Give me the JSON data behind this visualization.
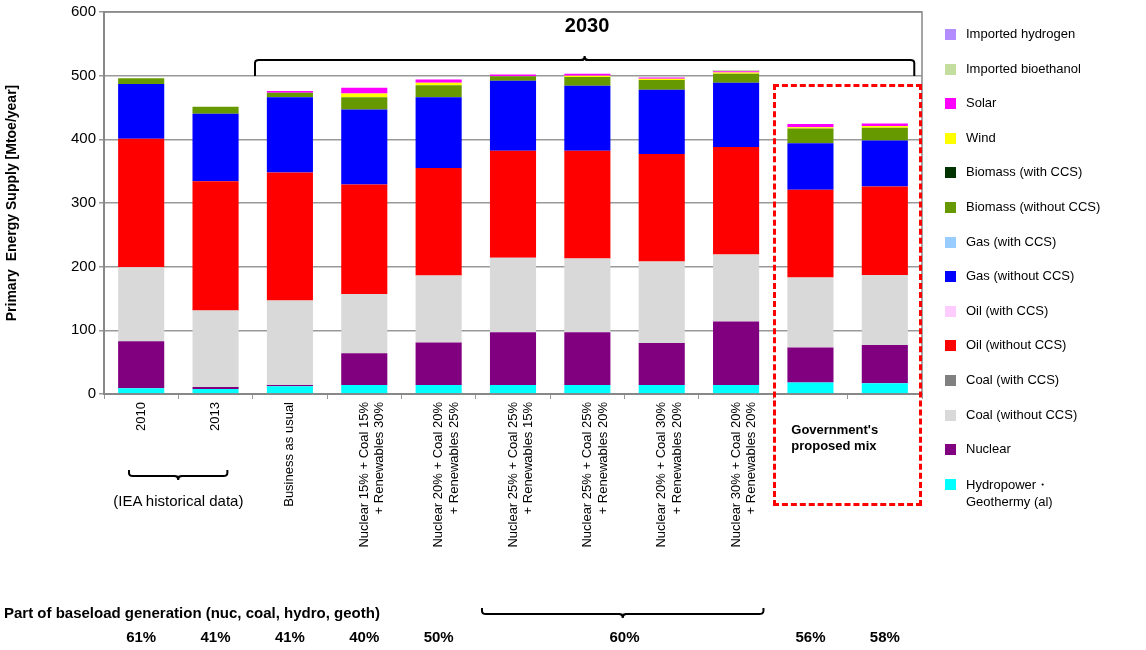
{
  "chart_data": {
    "type": "bar",
    "stacked": true,
    "ylabel": "Primary  Energy Supply [Mtoe/year]",
    "categories": [
      "2010",
      "2013",
      "Business as usual",
      "Nuclear 15% + Coal 15%\n+ Renewables 30%",
      "Nuclear 20% + Coal 20%\n+ Renewables 25%",
      "Nuclear 25% + Coal 25%\n+ Renewables 15%",
      "Nuclear 25% + Coal 25%\n+ Renewables 20%",
      "Nuclear 20% + Coal 30%\n+ Renewables 20%",
      "Nuclear 30% + Coal 20%\n+ Renewables 20%",
      null,
      null
    ],
    "series": [
      {
        "name": "Hydropower・\nGeothermy (al)",
        "color": "#00ffff",
        "values": [
          9,
          8,
          12,
          14,
          14,
          14,
          14,
          14,
          14,
          18,
          17
        ]
      },
      {
        "name": "Nuclear",
        "color": "#800080",
        "values": [
          74,
          3,
          2,
          50,
          67,
          83,
          83,
          66,
          100,
          55,
          60
        ]
      },
      {
        "name": "Coal (without CCS)",
        "color": "#d9d9d9",
        "values": [
          116,
          120,
          133,
          93,
          105,
          117,
          116,
          128,
          105,
          110,
          110
        ]
      },
      {
        "name": "Coal (with CCS)",
        "color": "#808080",
        "values": [
          0,
          0,
          0,
          0,
          0,
          0,
          0,
          0,
          0,
          0,
          0
        ]
      },
      {
        "name": "Oil (without CCS)",
        "color": "#ff0000",
        "values": [
          202,
          203,
          201,
          172,
          169,
          168,
          169,
          169,
          169,
          138,
          139
        ]
      },
      {
        "name": "Oil (with CCS)",
        "color": "#ffccff",
        "values": [
          0,
          0,
          0,
          0,
          0,
          0,
          0,
          0,
          0,
          0,
          0
        ]
      },
      {
        "name": "Gas (without CCS)",
        "color": "#0000ff",
        "values": [
          86,
          106,
          118,
          118,
          111,
          110,
          102,
          101,
          101,
          73,
          72
        ]
      },
      {
        "name": "Gas (with CCS)",
        "color": "#99ccff",
        "values": [
          0,
          0,
          0,
          0,
          0,
          0,
          0,
          0,
          0,
          0,
          0
        ]
      },
      {
        "name": "Biomass (without CCS)",
        "color": "#669900",
        "values": [
          9,
          11,
          7,
          19,
          19,
          7,
          14,
          15,
          14,
          23,
          20
        ]
      },
      {
        "name": "Biomass (with CCS)",
        "color": "#003300",
        "values": [
          0,
          0,
          0,
          0,
          0,
          0,
          0,
          0,
          0,
          0,
          0
        ]
      },
      {
        "name": "Wind",
        "color": "#ffff00",
        "values": [
          0,
          0,
          0,
          6,
          4,
          0,
          2,
          2,
          2,
          2,
          3
        ]
      },
      {
        "name": "Solar",
        "color": "#ff00ff",
        "values": [
          0,
          null,
          3,
          9,
          5,
          3,
          3,
          2,
          2,
          5,
          4
        ]
      },
      {
        "name": "Imported bioethanol",
        "color": "#c4dea0",
        "values": [
          0,
          0,
          0,
          0,
          0,
          0,
          0,
          0,
          2,
          0,
          0
        ]
      },
      {
        "name": "Imported hydrogen",
        "color": "#b38cff",
        "values": [
          0,
          0,
          0,
          0,
          0,
          0,
          0,
          0,
          0,
          0,
          0
        ]
      }
    ],
    "ylim": [
      0,
      600
    ],
    "yticks": [
      0,
      100,
      200,
      300,
      400,
      500,
      600
    ],
    "grid": "y",
    "legend": "right",
    "annotations": [
      "2030",
      "(IEA historical data)",
      "Government's proposed mix",
      "Part of baseload generation (nuc, coal, hydro, geoth)",
      "61%",
      "41%",
      "41%",
      "40%",
      "50%",
      "60%",
      "56%",
      "58%"
    ]
  }
}
